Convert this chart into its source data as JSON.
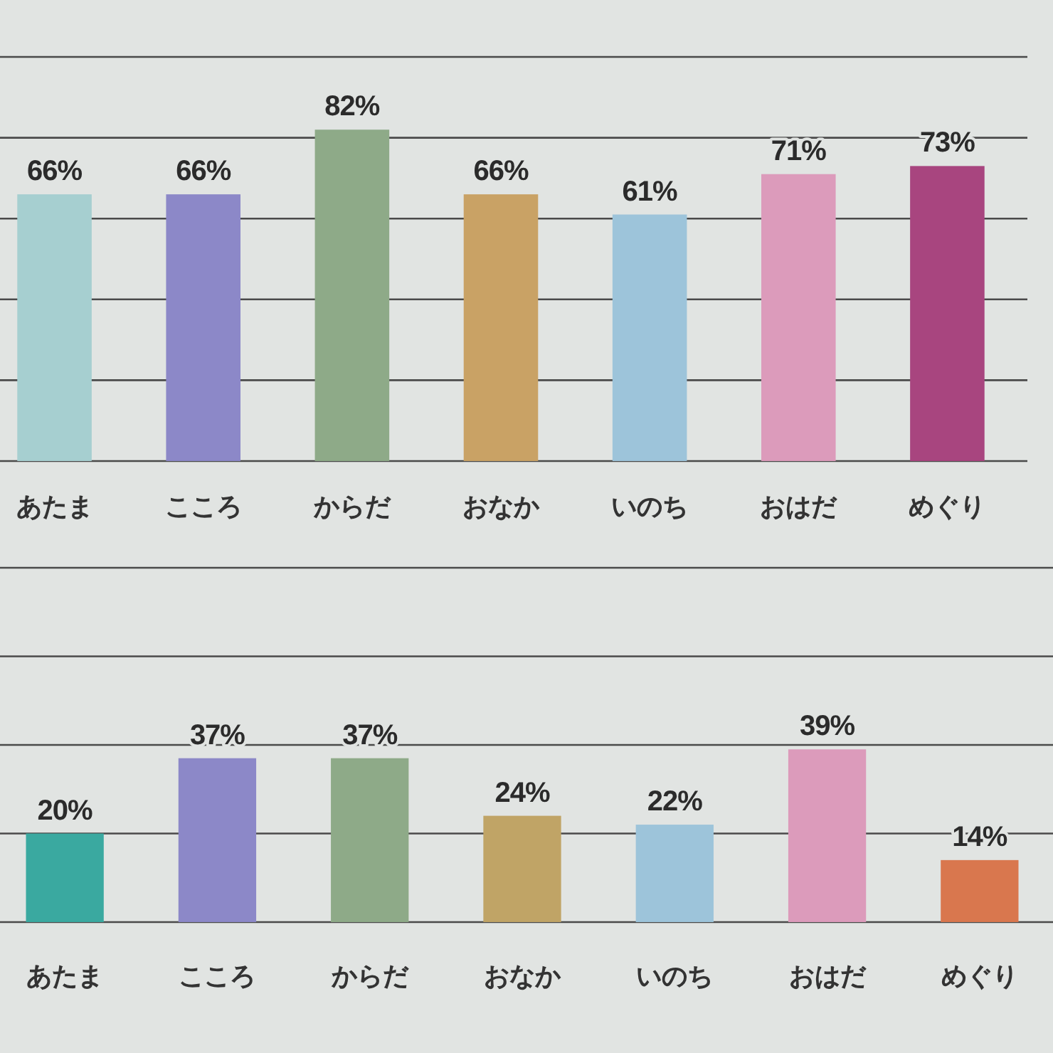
{
  "chart_data": [
    {
      "type": "bar",
      "categories": [
        "あたま",
        "こころ",
        "からだ",
        "おなか",
        "いのち",
        "おはだ",
        "めぐり"
      ],
      "values": [
        66,
        66,
        82,
        66,
        61,
        71,
        73
      ],
      "colors": [
        "#a6cfd0",
        "#8c88c8",
        "#8eaa88",
        "#c9a265",
        "#9dc4da",
        "#dc9bbb",
        "#a8457f"
      ],
      "value_labels": [
        "66%",
        "66%",
        "82%",
        "66%",
        "61%",
        "71%",
        "73%"
      ],
      "ylim": [
        0,
        100
      ],
      "yticks": [
        {
          "value": 0,
          "label": null
        },
        {
          "value": 20,
          "label": null
        },
        {
          "value": 40,
          "label": null
        },
        {
          "value": 60,
          "label": null
        },
        {
          "value": 80,
          "label": null
        },
        {
          "value": 100,
          "label": null
        }
      ],
      "grid": "y",
      "tick_labels": "x"
    },
    {
      "type": "bar",
      "categories": [
        "あたま",
        "こころ",
        "からだ",
        "おなか",
        "いのち",
        "おはだ",
        "めぐり"
      ],
      "values": [
        20,
        37,
        37,
        24,
        22,
        39,
        14
      ],
      "colors": [
        "#3aa9a0",
        "#8c88c8",
        "#8eaa88",
        "#c0a466",
        "#9dc4da",
        "#dc9bbb",
        "#d9774e"
      ],
      "value_labels": [
        "20%",
        "37%",
        "37%",
        "24%",
        "22%",
        "39%",
        "14%"
      ],
      "ylim": [
        0,
        80
      ],
      "yticks": [
        {
          "value": 0,
          "label": null
        },
        {
          "value": 20,
          "label": null
        },
        {
          "value": 40,
          "label": null
        },
        {
          "value": 60,
          "label": null
        },
        {
          "value": 80,
          "label": null
        }
      ],
      "grid": "y",
      "tick_labels": "x"
    }
  ]
}
